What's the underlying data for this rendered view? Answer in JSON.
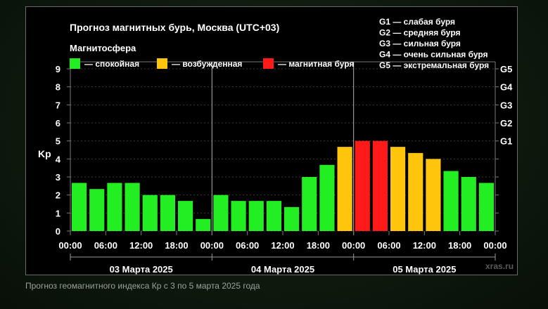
{
  "chart_data": {
    "type": "bar",
    "title": "Прогноз магнитных бурь, Москва (UTC+03)",
    "ylabel": "Kp",
    "ylim": [
      0,
      9
    ],
    "yticks": [
      "0",
      "1",
      "2",
      "3",
      "4",
      "5",
      "6",
      "7",
      "8",
      "9"
    ],
    "storm_levels": [
      {
        "label": "G1",
        "kp": 5
      },
      {
        "label": "G2",
        "kp": 6
      },
      {
        "label": "G3",
        "kp": 7
      },
      {
        "label": "G4",
        "kp": 8
      },
      {
        "label": "G5",
        "kp": 9
      }
    ],
    "storm_legend": [
      "G1 — слабая буря",
      "G2 — средняя буря",
      "G3 — сильная буря",
      "G4 — очень сильная буря",
      "G5 — экстремальная буря"
    ],
    "legend_title": "Магнитосфера",
    "legend": [
      {
        "label": "— спокойная",
        "color": "#22ee22"
      },
      {
        "label": "— возбужденная",
        "color": "#ffc40c"
      },
      {
        "label": "— магнитная буря",
        "color": "#ff1a1a"
      }
    ],
    "x_tick_labels": [
      "00:00",
      "06:00",
      "12:00",
      "18:00",
      "00:00",
      "06:00",
      "12:00",
      "18:00",
      "00:00",
      "06:00",
      "12:00",
      "18:00",
      "00:00"
    ],
    "days": [
      "03 Марта 2025",
      "04 Марта 2025",
      "05 Марта 2025"
    ],
    "values": [
      2.67,
      2.33,
      2.67,
      2.67,
      2.0,
      2.0,
      1.67,
      0.67,
      2.0,
      1.67,
      1.67,
      1.67,
      1.33,
      3.0,
      3.67,
      4.67,
      5.0,
      5.0,
      4.67,
      4.33,
      4.0,
      3.33,
      3.0,
      2.67
    ],
    "bar_colors": [
      "#22ee22",
      "#22ee22",
      "#22ee22",
      "#22ee22",
      "#22ee22",
      "#22ee22",
      "#22ee22",
      "#22ee22",
      "#22ee22",
      "#22ee22",
      "#22ee22",
      "#22ee22",
      "#22ee22",
      "#22ee22",
      "#22ee22",
      "#ffc40c",
      "#ff1a1a",
      "#ff1a1a",
      "#ffc40c",
      "#ffc40c",
      "#ffc40c",
      "#22ee22",
      "#22ee22",
      "#22ee22"
    ],
    "watermark": "xras.ru",
    "grid": true
  },
  "caption": "Прогноз геомагнитного индекса Кр с 3 по 5 марта 2025 года"
}
